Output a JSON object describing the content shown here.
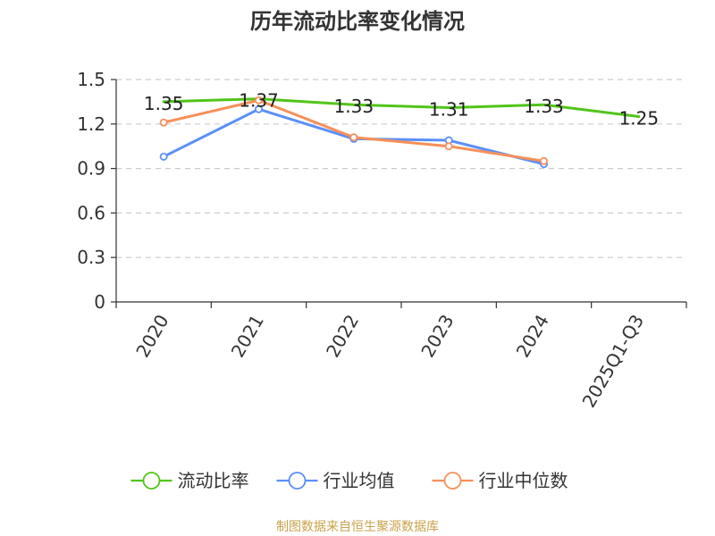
{
  "chart_data": {
    "type": "line",
    "title": "历年流动比率变化情况",
    "categories": [
      "2020",
      "2021",
      "2022",
      "2023",
      "2024",
      "2025Q1-Q3"
    ],
    "ylim": [
      0,
      1.5
    ],
    "yticks": [
      "0",
      "0.3",
      "0.6",
      "0.9",
      "1.2",
      "1.5"
    ],
    "grid": true,
    "legend_position": "bottom",
    "series": [
      {
        "name": "流动比率",
        "color": "#52c41a",
        "values": [
          1.35,
          1.37,
          1.33,
          1.31,
          1.33,
          1.25
        ],
        "labels": [
          "1.35",
          "1.37",
          "1.33",
          "1.31",
          "1.33",
          "1.25"
        ],
        "show_markers": false,
        "show_labels": true
      },
      {
        "name": "行业均值",
        "color": "#5b8ff9",
        "values": [
          0.98,
          1.3,
          1.1,
          1.09,
          0.93,
          null
        ],
        "show_markers": true,
        "show_labels": false
      },
      {
        "name": "行业中位数",
        "color": "#f6905a",
        "values": [
          1.21,
          1.36,
          1.11,
          1.05,
          0.95,
          null
        ],
        "show_markers": true,
        "show_labels": false
      }
    ]
  },
  "footer": {
    "text": "制图数据来自恒生聚源数据库",
    "color": "#c8a24a"
  }
}
